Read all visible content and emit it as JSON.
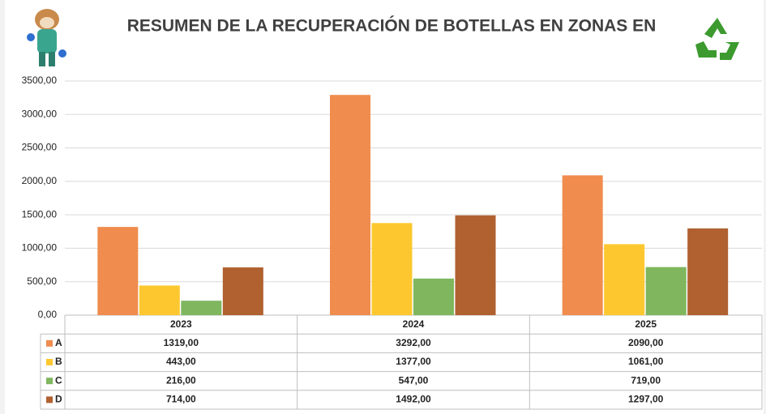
{
  "chart_data": {
    "type": "bar",
    "title": "RESUMEN DE LA RECUPERACIÓN DE BOTELLAS EN ZONAS EN",
    "categories": [
      "2023",
      "2024",
      "2025"
    ],
    "series": [
      {
        "name": "A",
        "color": "#ef8c4e",
        "values": [
          1319,
          3292,
          2090
        ],
        "value_labels": [
          "1319,00",
          "3292,00",
          "2090,00"
        ]
      },
      {
        "name": "B",
        "color": "#fdc82f",
        "values": [
          443,
          1377,
          1061
        ],
        "value_labels": [
          "443,00",
          "1377,00",
          "1061,00"
        ]
      },
      {
        "name": "C",
        "color": "#7fb65e",
        "values": [
          216,
          547,
          719
        ],
        "value_labels": [
          "216,00",
          "547,00",
          "719,00"
        ]
      },
      {
        "name": "D",
        "color": "#b0612f",
        "values": [
          714,
          1492,
          1297
        ],
        "value_labels": [
          "714,00",
          "1492,00",
          "1297,00"
        ]
      }
    ],
    "ylim": [
      0,
      3500
    ],
    "yticks": [
      {
        "value": 0,
        "label": "0,00"
      },
      {
        "value": 500,
        "label": "500,00"
      },
      {
        "value": 1000,
        "label": "1000,00"
      },
      {
        "value": 1500,
        "label": "1500,00"
      },
      {
        "value": 2000,
        "label": "2000,00"
      },
      {
        "value": 2500,
        "label": "2500,00"
      },
      {
        "value": 3000,
        "label": "3000,00"
      },
      {
        "value": 3500,
        "label": "3500,00"
      }
    ],
    "grid": true
  }
}
